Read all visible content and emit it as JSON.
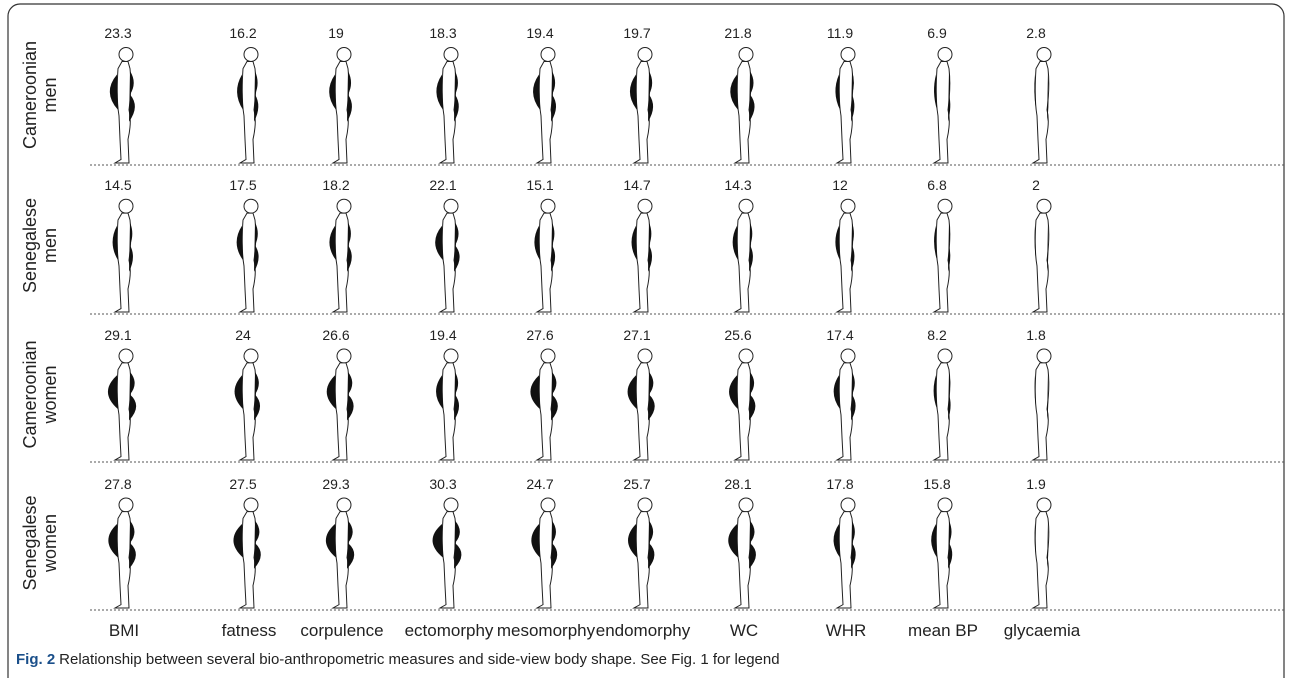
{
  "rows": [
    {
      "label_lines": [
        "Cameroonian",
        "men"
      ],
      "values": [
        "23.3",
        "16.2",
        "19",
        "18.3",
        "19.4",
        "19.7",
        "21.8",
        "11.9",
        "6.9",
        "2.8"
      ]
    },
    {
      "label_lines": [
        "Senegalese",
        "men"
      ],
      "values": [
        "14.5",
        "17.5",
        "18.2",
        "22.1",
        "15.1",
        "14.7",
        "14.3",
        "12",
        "6.8",
        "2"
      ]
    },
    {
      "label_lines": [
        "Cameroonian",
        "women"
      ],
      "values": [
        "29.1",
        "24",
        "26.6",
        "19.4",
        "27.6",
        "27.1",
        "25.6",
        "17.4",
        "8.2",
        "1.8"
      ]
    },
    {
      "label_lines": [
        "Senegalese",
        "women"
      ],
      "values": [
        "27.8",
        "27.5",
        "29.3",
        "30.3",
        "24.7",
        "25.7",
        "28.1",
        "17.8",
        "15.8",
        "1.9"
      ]
    }
  ],
  "columns": [
    "BMI",
    "fatness",
    "corpulence",
    "ectomorphy",
    "mesomorphy",
    "endomorphy",
    "WC",
    "WHR",
    "mean BP",
    "glycaemia"
  ],
  "caption": {
    "label": "Fig. 2",
    "text": "Relationship between several bio-anthropometric measures and side-view body shape. See Fig. 1 for legend"
  }
}
